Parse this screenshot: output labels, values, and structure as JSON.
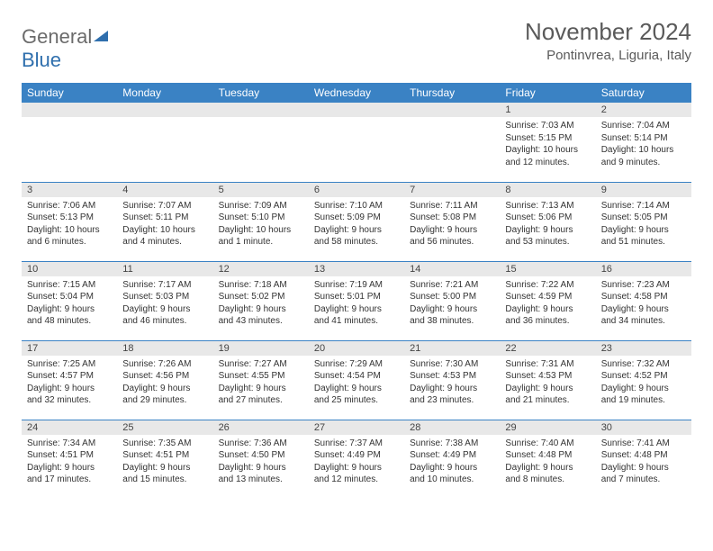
{
  "logo": {
    "text_grey": "General",
    "text_blue": "Blue",
    "icon_color": "#2f6fad"
  },
  "title": "November 2024",
  "location": "Pontinvrea, Liguria, Italy",
  "colors": {
    "header_bg": "#3a82c4",
    "header_text": "#ffffff",
    "daynum_bg": "#e8e8e8",
    "cell_border": "#3a82c4",
    "body_text": "#333333",
    "title_text": "#5a5a5a"
  },
  "weekdays": [
    "Sunday",
    "Monday",
    "Tuesday",
    "Wednesday",
    "Thursday",
    "Friday",
    "Saturday"
  ],
  "weeks": [
    [
      null,
      null,
      null,
      null,
      null,
      {
        "n": "1",
        "sr": "7:03 AM",
        "ss": "5:15 PM",
        "dl": "10 hours and 12 minutes."
      },
      {
        "n": "2",
        "sr": "7:04 AM",
        "ss": "5:14 PM",
        "dl": "10 hours and 9 minutes."
      }
    ],
    [
      {
        "n": "3",
        "sr": "7:06 AM",
        "ss": "5:13 PM",
        "dl": "10 hours and 6 minutes."
      },
      {
        "n": "4",
        "sr": "7:07 AM",
        "ss": "5:11 PM",
        "dl": "10 hours and 4 minutes."
      },
      {
        "n": "5",
        "sr": "7:09 AM",
        "ss": "5:10 PM",
        "dl": "10 hours and 1 minute."
      },
      {
        "n": "6",
        "sr": "7:10 AM",
        "ss": "5:09 PM",
        "dl": "9 hours and 58 minutes."
      },
      {
        "n": "7",
        "sr": "7:11 AM",
        "ss": "5:08 PM",
        "dl": "9 hours and 56 minutes."
      },
      {
        "n": "8",
        "sr": "7:13 AM",
        "ss": "5:06 PM",
        "dl": "9 hours and 53 minutes."
      },
      {
        "n": "9",
        "sr": "7:14 AM",
        "ss": "5:05 PM",
        "dl": "9 hours and 51 minutes."
      }
    ],
    [
      {
        "n": "10",
        "sr": "7:15 AM",
        "ss": "5:04 PM",
        "dl": "9 hours and 48 minutes."
      },
      {
        "n": "11",
        "sr": "7:17 AM",
        "ss": "5:03 PM",
        "dl": "9 hours and 46 minutes."
      },
      {
        "n": "12",
        "sr": "7:18 AM",
        "ss": "5:02 PM",
        "dl": "9 hours and 43 minutes."
      },
      {
        "n": "13",
        "sr": "7:19 AM",
        "ss": "5:01 PM",
        "dl": "9 hours and 41 minutes."
      },
      {
        "n": "14",
        "sr": "7:21 AM",
        "ss": "5:00 PM",
        "dl": "9 hours and 38 minutes."
      },
      {
        "n": "15",
        "sr": "7:22 AM",
        "ss": "4:59 PM",
        "dl": "9 hours and 36 minutes."
      },
      {
        "n": "16",
        "sr": "7:23 AM",
        "ss": "4:58 PM",
        "dl": "9 hours and 34 minutes."
      }
    ],
    [
      {
        "n": "17",
        "sr": "7:25 AM",
        "ss": "4:57 PM",
        "dl": "9 hours and 32 minutes."
      },
      {
        "n": "18",
        "sr": "7:26 AM",
        "ss": "4:56 PM",
        "dl": "9 hours and 29 minutes."
      },
      {
        "n": "19",
        "sr": "7:27 AM",
        "ss": "4:55 PM",
        "dl": "9 hours and 27 minutes."
      },
      {
        "n": "20",
        "sr": "7:29 AM",
        "ss": "4:54 PM",
        "dl": "9 hours and 25 minutes."
      },
      {
        "n": "21",
        "sr": "7:30 AM",
        "ss": "4:53 PM",
        "dl": "9 hours and 23 minutes."
      },
      {
        "n": "22",
        "sr": "7:31 AM",
        "ss": "4:53 PM",
        "dl": "9 hours and 21 minutes."
      },
      {
        "n": "23",
        "sr": "7:32 AM",
        "ss": "4:52 PM",
        "dl": "9 hours and 19 minutes."
      }
    ],
    [
      {
        "n": "24",
        "sr": "7:34 AM",
        "ss": "4:51 PM",
        "dl": "9 hours and 17 minutes."
      },
      {
        "n": "25",
        "sr": "7:35 AM",
        "ss": "4:51 PM",
        "dl": "9 hours and 15 minutes."
      },
      {
        "n": "26",
        "sr": "7:36 AM",
        "ss": "4:50 PM",
        "dl": "9 hours and 13 minutes."
      },
      {
        "n": "27",
        "sr": "7:37 AM",
        "ss": "4:49 PM",
        "dl": "9 hours and 12 minutes."
      },
      {
        "n": "28",
        "sr": "7:38 AM",
        "ss": "4:49 PM",
        "dl": "9 hours and 10 minutes."
      },
      {
        "n": "29",
        "sr": "7:40 AM",
        "ss": "4:48 PM",
        "dl": "9 hours and 8 minutes."
      },
      {
        "n": "30",
        "sr": "7:41 AM",
        "ss": "4:48 PM",
        "dl": "9 hours and 7 minutes."
      }
    ]
  ],
  "labels": {
    "sunrise": "Sunrise:",
    "sunset": "Sunset:",
    "daylight": "Daylight:"
  }
}
